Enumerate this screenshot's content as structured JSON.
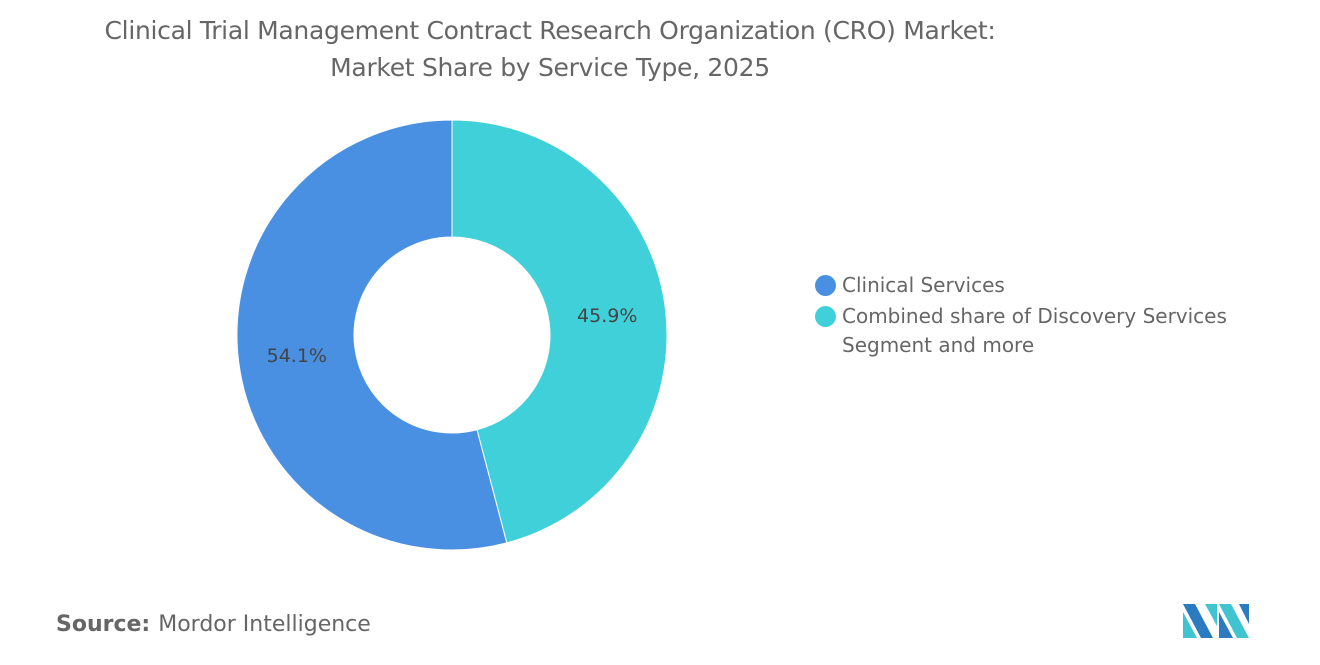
{
  "chart_data": {
    "type": "pie",
    "donut": true,
    "title": "Clinical Trial Management Contract Research Organization (CRO) Market: Market Share by Service Type, 2025",
    "title_lines": [
      "Clinical Trial Management Contract Research Organization (CRO) Market:",
      "Market Share by Service Type, 2025"
    ],
    "slices": [
      {
        "name": "Combined share of Discovery Services Segment and more",
        "value": 45.9,
        "label": "45.9%",
        "color": "#40d0d9"
      },
      {
        "name": "Clinical Services",
        "value": 54.1,
        "label": "54.1%",
        "color": "#4a90e2"
      }
    ],
    "legend": [
      {
        "label": "Clinical Services",
        "color": "#4a90e2"
      },
      {
        "label": "Combined share of Discovery Services Segment and more",
        "color": "#40d0d9"
      }
    ],
    "legend_placement": "right"
  },
  "source": {
    "label": "Source:",
    "value": "Mordor Intelligence"
  }
}
